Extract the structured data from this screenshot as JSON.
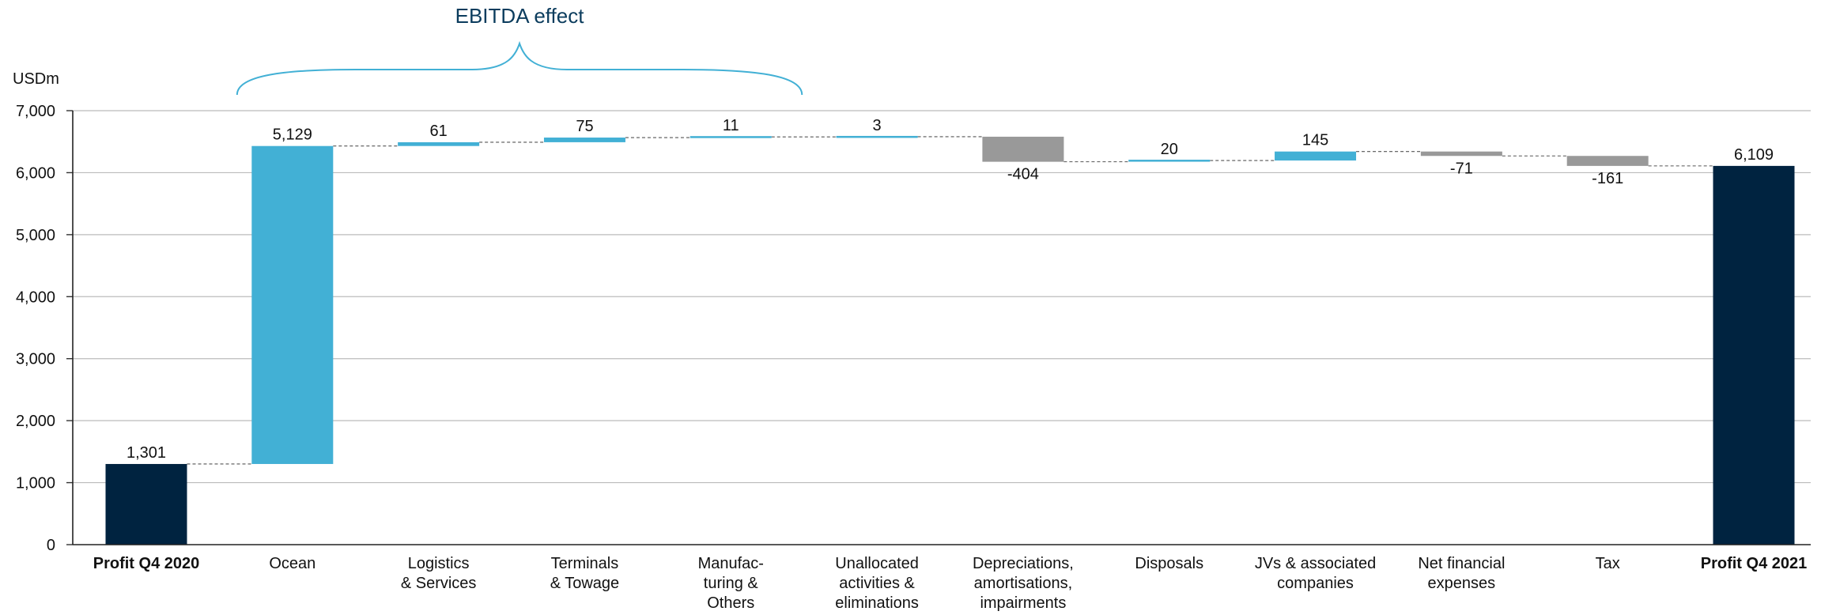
{
  "chart_data": {
    "type": "bar",
    "subtype": "waterfall",
    "unit_label": "USDm",
    "bracket_label": "EBITDA effect",
    "ylim": [
      0,
      7000
    ],
    "yticks": [
      "0",
      "1,000",
      "2,000",
      "3,000",
      "4,000",
      "5,000",
      "6,000",
      "7,000"
    ],
    "ytick_values": [
      0,
      1000,
      2000,
      3000,
      4000,
      5000,
      6000,
      7000
    ],
    "grid": true,
    "colors": {
      "total": "#002340",
      "increase": "#42b0d5",
      "decrease": "#999999",
      "grid": "#bbbbbb",
      "connector": "#555555",
      "bracket": "#42b0d5",
      "bracket_text": "#0b3c5d"
    },
    "categories": [
      {
        "label": [
          "Profit Q4 2020"
        ],
        "bold": true
      },
      {
        "label": [
          "Ocean"
        ]
      },
      {
        "label": [
          "Logistics",
          "& Services"
        ]
      },
      {
        "label": [
          "Terminals",
          "& Towage"
        ]
      },
      {
        "label": [
          "Manufac-",
          "turing &",
          "Others"
        ]
      },
      {
        "label": [
          "Unallocated",
          "activities &",
          "eliminations"
        ]
      },
      {
        "label": [
          "Depreciations,",
          "amortisations,",
          "impairments"
        ]
      },
      {
        "label": [
          "Disposals"
        ]
      },
      {
        "label": [
          "JVs & associated",
          "companies"
        ]
      },
      {
        "label": [
          "Net financial",
          "expenses"
        ]
      },
      {
        "label": [
          "Tax"
        ]
      },
      {
        "label": [
          "Profit Q4 2021"
        ],
        "bold": true
      }
    ],
    "steps": [
      {
        "kind": "total",
        "value": 1301,
        "label": "1,301"
      },
      {
        "kind": "delta",
        "value": 5129,
        "label": "5,129"
      },
      {
        "kind": "delta",
        "value": 61,
        "label": "61"
      },
      {
        "kind": "delta",
        "value": 75,
        "label": "75"
      },
      {
        "kind": "delta",
        "value": 11,
        "label": "11"
      },
      {
        "kind": "delta",
        "value": 3,
        "label": "3"
      },
      {
        "kind": "delta",
        "value": -404,
        "label": "-404"
      },
      {
        "kind": "delta",
        "value": 20,
        "label": "20"
      },
      {
        "kind": "delta",
        "value": 145,
        "label": "145"
      },
      {
        "kind": "delta",
        "value": -71,
        "label": "-71"
      },
      {
        "kind": "delta",
        "value": -161,
        "label": "-161"
      },
      {
        "kind": "total",
        "value": 6109,
        "label": "6,109"
      }
    ],
    "bracket_span": [
      1,
      4
    ]
  }
}
